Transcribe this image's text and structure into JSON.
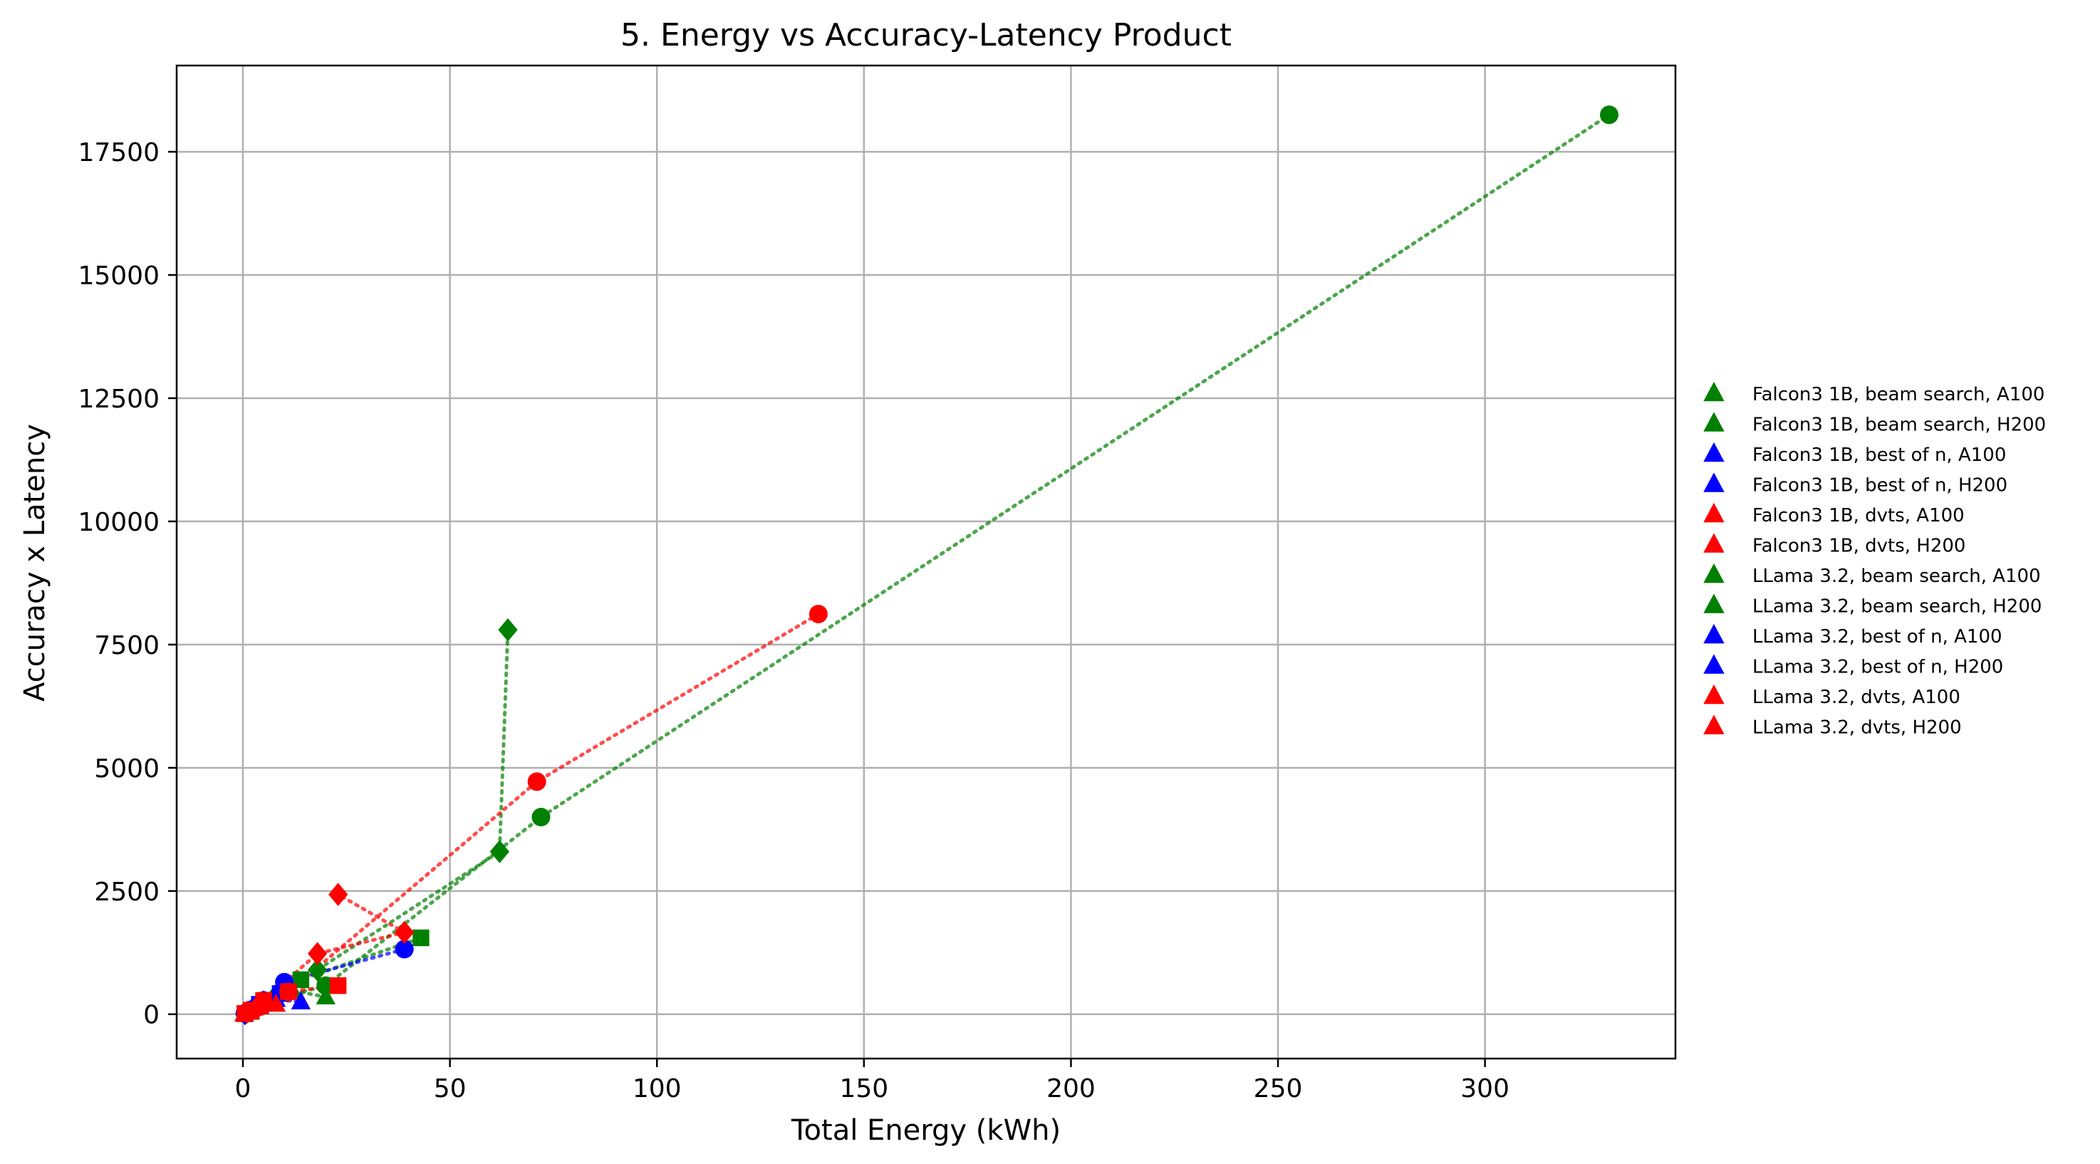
{
  "chart_data": {
    "type": "scatter",
    "title": "5. Energy vs Accuracy-Latency Product",
    "xlabel": "Total Energy (kWh)",
    "ylabel": "Accuracy x Latency",
    "xlim": [
      -16,
      346
    ],
    "ylim": [
      -900,
      19250
    ],
    "xticks": [
      0,
      50,
      100,
      150,
      200,
      250,
      300
    ],
    "yticks": [
      0,
      2500,
      5000,
      7500,
      10000,
      12500,
      15000,
      17500
    ],
    "xtick_labels": [
      "0",
      "50",
      "100",
      "150",
      "200",
      "250",
      "300"
    ],
    "ytick_labels": [
      "0",
      "2500",
      "5000",
      "7500",
      "10000",
      "12500",
      "15000",
      "17500"
    ],
    "grid": true,
    "legend_position": "outside-right",
    "colors": {
      "beam_search": "#008000",
      "best_of_n": "#0000ff",
      "dvts": "#ff0000"
    },
    "legend": [
      {
        "label": "Falcon3 1B, beam search, A100",
        "color": "#008000"
      },
      {
        "label": "Falcon3 1B, beam search, H200",
        "color": "#008000"
      },
      {
        "label": "Falcon3 1B, best of n, A100",
        "color": "#0000ff"
      },
      {
        "label": "Falcon3 1B, best of n, H200",
        "color": "#0000ff"
      },
      {
        "label": "Falcon3 1B, dvts, A100",
        "color": "#ff0000"
      },
      {
        "label": "Falcon3 1B, dvts, H200",
        "color": "#ff0000"
      },
      {
        "label": "LLama 3.2, beam search, A100",
        "color": "#008000"
      },
      {
        "label": "LLama 3.2, beam search, H200",
        "color": "#008000"
      },
      {
        "label": "LLama 3.2, best of n, A100",
        "color": "#0000ff"
      },
      {
        "label": "LLama 3.2, best of n, H200",
        "color": "#0000ff"
      },
      {
        "label": "LLama 3.2, dvts, A100",
        "color": "#ff0000"
      },
      {
        "label": "LLama 3.2, dvts, H200",
        "color": "#ff0000"
      }
    ],
    "series": [
      {
        "color": "#008000",
        "marker": "circle",
        "points": [
          [
            0.5,
            15
          ],
          [
            2,
            70
          ],
          [
            6,
            260
          ],
          [
            20,
            580
          ],
          [
            72,
            4000
          ],
          [
            330,
            18250
          ]
        ]
      },
      {
        "color": "#008000",
        "marker": "square",
        "points": [
          [
            0.5,
            10
          ],
          [
            2,
            60
          ],
          [
            5,
            220
          ],
          [
            14,
            700
          ],
          [
            43,
            1550
          ]
        ]
      },
      {
        "color": "#008000",
        "marker": "diamond",
        "points": [
          [
            0.5,
            15
          ],
          [
            3,
            120
          ],
          [
            8,
            380
          ],
          [
            18,
            900
          ],
          [
            62,
            3300
          ],
          [
            64,
            7800
          ]
        ]
      },
      {
        "color": "#008000",
        "marker": "triangle",
        "points": [
          [
            0.3,
            5
          ],
          [
            1.5,
            40
          ],
          [
            4,
            150
          ],
          [
            12,
            480
          ],
          [
            20,
            350
          ]
        ]
      },
      {
        "color": "#0000ff",
        "marker": "circle",
        "points": [
          [
            0.5,
            20
          ],
          [
            2,
            90
          ],
          [
            5,
            280
          ],
          [
            10,
            650
          ],
          [
            39,
            1320
          ]
        ]
      },
      {
        "color": "#0000ff",
        "marker": "square",
        "points": [
          [
            0.5,
            15
          ],
          [
            2,
            80
          ],
          [
            4,
            200
          ],
          [
            9,
            420
          ]
        ]
      },
      {
        "color": "#0000ff",
        "marker": "diamond",
        "points": [
          [
            0.5,
            10
          ],
          [
            2,
            70
          ],
          [
            5,
            250
          ],
          [
            10,
            500
          ]
        ]
      },
      {
        "color": "#0000ff",
        "marker": "triangle",
        "points": [
          [
            0.3,
            5
          ],
          [
            1.5,
            50
          ],
          [
            4,
            180
          ],
          [
            8,
            300
          ],
          [
            14,
            250
          ]
        ]
      },
      {
        "color": "#ff0000",
        "marker": "circle",
        "points": [
          [
            1,
            30
          ],
          [
            4,
            150
          ],
          [
            11,
            450
          ],
          [
            71,
            4720
          ],
          [
            139,
            8120
          ]
        ]
      },
      {
        "color": "#ff0000",
        "marker": "square",
        "points": [
          [
            0.5,
            15
          ],
          [
            2,
            80
          ],
          [
            5,
            280
          ],
          [
            11,
            460
          ],
          [
            23,
            580
          ]
        ]
      },
      {
        "color": "#ff0000",
        "marker": "diamond",
        "points": [
          [
            1,
            40
          ],
          [
            4,
            200
          ],
          [
            18,
            1230
          ],
          [
            39,
            1660
          ],
          [
            23,
            2430
          ]
        ]
      },
      {
        "color": "#ff0000",
        "marker": "triangle",
        "points": [
          [
            0.3,
            5
          ],
          [
            1.5,
            40
          ],
          [
            4,
            150
          ],
          [
            8,
            200
          ]
        ]
      }
    ]
  }
}
